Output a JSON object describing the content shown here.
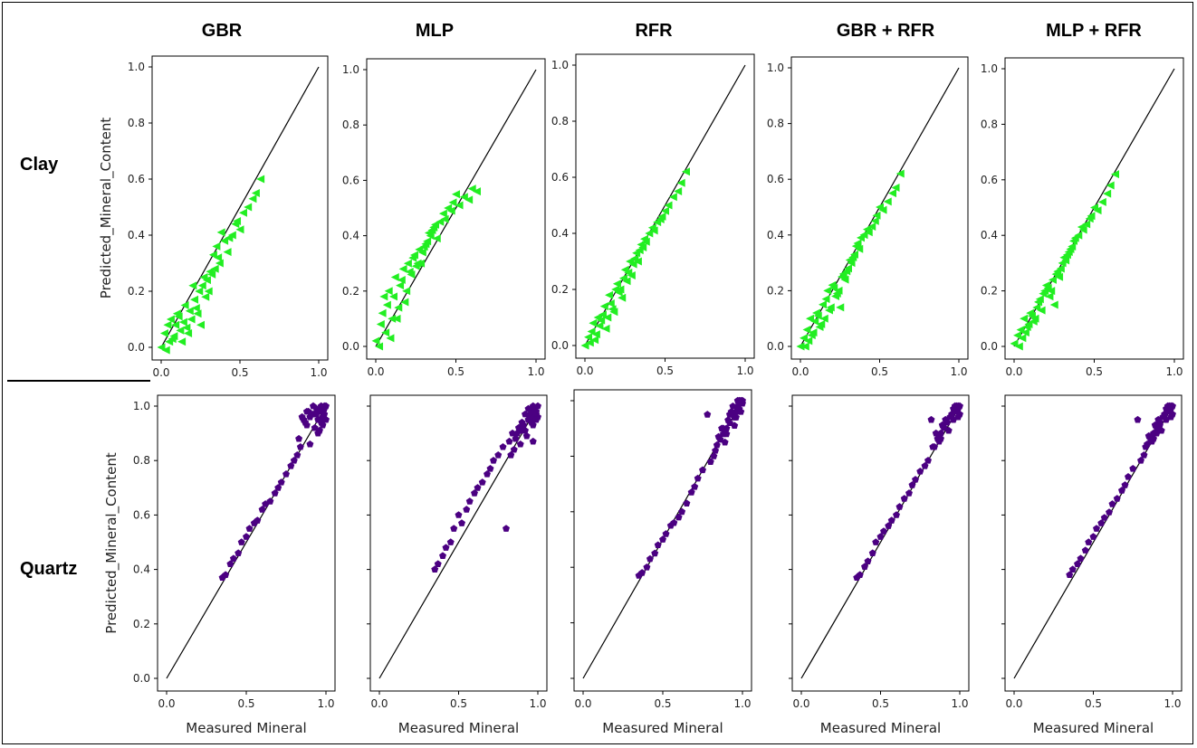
{
  "column_titles": [
    "GBR",
    "MLP",
    "RFR",
    "GBR + RFR",
    "MLP + RFR"
  ],
  "row_titles": [
    "Clay",
    "Quartz"
  ],
  "ylabel": "Predicted_Mineral_Content",
  "xlabel": "Measured Mineral",
  "colors": {
    "clay": "#22ee22",
    "quartz": "#4b0082",
    "line": "#000000"
  },
  "chart_data": [
    {
      "type": "scatter",
      "row": "Clay",
      "model": "GBR",
      "marker": "triangle-left",
      "xlim": [
        0,
        1
      ],
      "ylim": [
        0,
        1
      ],
      "xticks": [
        "0.0",
        "0.5",
        "1.0"
      ],
      "yticks": [
        "0.0",
        "0.2",
        "0.4",
        "0.6",
        "0.8",
        "1.0"
      ],
      "x": [
        0.0,
        0.02,
        0.04,
        0.05,
        0.06,
        0.08,
        0.1,
        0.12,
        0.14,
        0.15,
        0.17,
        0.19,
        0.2,
        0.22,
        0.24,
        0.25,
        0.27,
        0.28,
        0.3,
        0.32,
        0.34,
        0.35,
        0.37,
        0.4,
        0.42,
        0.45,
        0.48,
        0.5,
        0.55,
        0.6,
        0.63,
        0.03,
        0.07,
        0.09,
        0.11,
        0.13,
        0.16,
        0.18,
        0.21,
        0.23,
        0.26,
        0.29,
        0.31,
        0.33,
        0.36,
        0.38,
        0.43,
        0.47,
        0.52,
        0.58
      ],
      "y": [
        0.0,
        0.05,
        0.08,
        0.02,
        0.1,
        0.04,
        0.12,
        0.06,
        0.09,
        0.15,
        0.05,
        0.1,
        0.22,
        0.14,
        0.2,
        0.08,
        0.25,
        0.18,
        0.2,
        0.26,
        0.28,
        0.36,
        0.3,
        0.38,
        0.34,
        0.4,
        0.45,
        0.42,
        0.5,
        0.55,
        0.6,
        -0.01,
        0.03,
        0.08,
        0.11,
        0.02,
        0.07,
        0.13,
        0.17,
        0.12,
        0.22,
        0.24,
        0.27,
        0.33,
        0.32,
        0.41,
        0.39,
        0.44,
        0.48,
        0.53
      ]
    },
    {
      "type": "scatter",
      "row": "Clay",
      "model": "MLP",
      "marker": "triangle-left",
      "xlim": [
        0,
        1
      ],
      "ylim": [
        0,
        1
      ],
      "xticks": [
        "0.0",
        "0.5",
        "1.0"
      ],
      "yticks": [
        "0.0",
        "0.2",
        "0.4",
        "0.6",
        "0.8",
        "1.0"
      ],
      "x": [
        0.0,
        0.02,
        0.04,
        0.05,
        0.06,
        0.08,
        0.1,
        0.12,
        0.14,
        0.15,
        0.17,
        0.19,
        0.2,
        0.22,
        0.24,
        0.25,
        0.27,
        0.28,
        0.3,
        0.32,
        0.34,
        0.35,
        0.37,
        0.4,
        0.42,
        0.45,
        0.48,
        0.5,
        0.55,
        0.6,
        0.63,
        0.03,
        0.07,
        0.09,
        0.11,
        0.13,
        0.16,
        0.18,
        0.21,
        0.23,
        0.26,
        0.29,
        0.31,
        0.33,
        0.36,
        0.38,
        0.43,
        0.47,
        0.52,
        0.58
      ],
      "y": [
        0.02,
        0.0,
        0.12,
        0.18,
        0.05,
        0.2,
        0.1,
        0.25,
        0.14,
        0.22,
        0.28,
        0.2,
        0.3,
        0.26,
        0.33,
        0.29,
        0.35,
        0.3,
        0.36,
        0.38,
        0.4,
        0.42,
        0.44,
        0.45,
        0.48,
        0.5,
        0.52,
        0.55,
        0.54,
        0.57,
        0.56,
        0.08,
        0.15,
        0.03,
        0.18,
        0.1,
        0.24,
        0.16,
        0.27,
        0.32,
        0.3,
        0.34,
        0.37,
        0.41,
        0.43,
        0.39,
        0.46,
        0.49,
        0.51,
        0.53
      ]
    },
    {
      "type": "scatter",
      "row": "Clay",
      "model": "RFR",
      "marker": "triangle-left",
      "xlim": [
        0,
        1
      ],
      "ylim": [
        0,
        1
      ],
      "xticks": [
        "0.0",
        "0.5",
        "1.0"
      ],
      "yticks": [
        "0.0",
        "0.2",
        "0.4",
        "0.6",
        "0.8",
        "1.0"
      ],
      "x": [
        0.0,
        0.02,
        0.04,
        0.05,
        0.06,
        0.08,
        0.1,
        0.12,
        0.14,
        0.15,
        0.17,
        0.19,
        0.2,
        0.22,
        0.24,
        0.25,
        0.27,
        0.28,
        0.3,
        0.32,
        0.34,
        0.35,
        0.37,
        0.4,
        0.42,
        0.45,
        0.48,
        0.5,
        0.55,
        0.6,
        0.63,
        0.03,
        0.07,
        0.09,
        0.11,
        0.13,
        0.16,
        0.18,
        0.21,
        0.23,
        0.26,
        0.29,
        0.31,
        0.33,
        0.36,
        0.38,
        0.43,
        0.47,
        0.52,
        0.58
      ],
      "y": [
        0.0,
        0.03,
        0.05,
        0.08,
        0.02,
        0.1,
        0.09,
        0.14,
        0.1,
        0.18,
        0.13,
        0.2,
        0.22,
        0.2,
        0.24,
        0.27,
        0.26,
        0.3,
        0.29,
        0.33,
        0.34,
        0.36,
        0.38,
        0.4,
        0.42,
        0.44,
        0.46,
        0.48,
        0.53,
        0.58,
        0.62,
        0.01,
        0.04,
        0.07,
        0.11,
        0.06,
        0.15,
        0.12,
        0.19,
        0.17,
        0.23,
        0.25,
        0.31,
        0.3,
        0.35,
        0.37,
        0.41,
        0.45,
        0.5,
        0.55
      ]
    },
    {
      "type": "scatter",
      "row": "Clay",
      "model": "GBR + RFR",
      "marker": "triangle-left",
      "xlim": [
        0,
        1
      ],
      "ylim": [
        0,
        1
      ],
      "xticks": [
        "0.0",
        "0.5",
        "1.0"
      ],
      "yticks": [
        "0.0",
        "0.2",
        "0.4",
        "0.6",
        "0.8",
        "1.0"
      ],
      "x": [
        0.0,
        0.02,
        0.04,
        0.05,
        0.06,
        0.08,
        0.1,
        0.12,
        0.14,
        0.15,
        0.17,
        0.19,
        0.2,
        0.22,
        0.24,
        0.25,
        0.27,
        0.28,
        0.3,
        0.32,
        0.34,
        0.35,
        0.37,
        0.4,
        0.42,
        0.45,
        0.48,
        0.5,
        0.55,
        0.6,
        0.63,
        0.03,
        0.07,
        0.09,
        0.11,
        0.13,
        0.16,
        0.18,
        0.21,
        0.23,
        0.26,
        0.29,
        0.31,
        0.33,
        0.36,
        0.38,
        0.43,
        0.47,
        0.52,
        0.58
      ],
      "y": [
        0.0,
        0.03,
        0.06,
        0.02,
        0.1,
        0.05,
        0.12,
        0.07,
        0.15,
        0.1,
        0.2,
        0.14,
        0.22,
        0.18,
        0.2,
        0.14,
        0.26,
        0.24,
        0.28,
        0.3,
        0.33,
        0.36,
        0.35,
        0.4,
        0.42,
        0.43,
        0.47,
        0.5,
        0.52,
        0.57,
        0.62,
        0.0,
        0.04,
        0.09,
        0.11,
        0.08,
        0.17,
        0.13,
        0.21,
        0.19,
        0.25,
        0.27,
        0.31,
        0.32,
        0.37,
        0.39,
        0.41,
        0.45,
        0.49,
        0.55
      ]
    },
    {
      "type": "scatter",
      "row": "Clay",
      "model": "MLP + RFR",
      "marker": "triangle-left",
      "xlim": [
        0,
        1
      ],
      "ylim": [
        0,
        1
      ],
      "xticks": [
        "0.0",
        "0.5",
        "1.0"
      ],
      "yticks": [
        "0.0",
        "0.2",
        "0.4",
        "0.6",
        "0.8",
        "1.0"
      ],
      "x": [
        0.0,
        0.02,
        0.04,
        0.05,
        0.06,
        0.08,
        0.1,
        0.12,
        0.14,
        0.15,
        0.17,
        0.19,
        0.2,
        0.22,
        0.24,
        0.25,
        0.27,
        0.28,
        0.3,
        0.32,
        0.34,
        0.35,
        0.37,
        0.4,
        0.42,
        0.45,
        0.48,
        0.5,
        0.55,
        0.6,
        0.63,
        0.03,
        0.07,
        0.09,
        0.11,
        0.13,
        0.16,
        0.18,
        0.21,
        0.23,
        0.26,
        0.29,
        0.31,
        0.33,
        0.36,
        0.38,
        0.43,
        0.47,
        0.52,
        0.58
      ],
      "y": [
        0.01,
        0.04,
        0.06,
        0.03,
        0.1,
        0.07,
        0.12,
        0.09,
        0.14,
        0.16,
        0.13,
        0.2,
        0.22,
        0.18,
        0.24,
        0.15,
        0.27,
        0.25,
        0.3,
        0.31,
        0.34,
        0.35,
        0.38,
        0.4,
        0.43,
        0.44,
        0.47,
        0.5,
        0.52,
        0.58,
        0.62,
        0.0,
        0.05,
        0.08,
        0.11,
        0.1,
        0.17,
        0.19,
        0.21,
        0.2,
        0.26,
        0.28,
        0.32,
        0.33,
        0.36,
        0.39,
        0.42,
        0.46,
        0.49,
        0.55
      ]
    },
    {
      "type": "scatter",
      "row": "Quartz",
      "model": "GBR",
      "marker": "pentagon",
      "xlim": [
        0,
        1
      ],
      "ylim": [
        0,
        1
      ],
      "xticks": [
        "0.0",
        "0.5",
        "1.0"
      ],
      "yticks": [
        "0.0",
        "0.2",
        "0.4",
        "0.6",
        "0.8",
        "1.0"
      ],
      "x": [
        0.35,
        0.37,
        0.4,
        0.42,
        0.45,
        0.47,
        0.5,
        0.52,
        0.55,
        0.57,
        0.6,
        0.62,
        0.65,
        0.68,
        0.7,
        0.72,
        0.75,
        0.78,
        0.8,
        0.82,
        0.84,
        0.86,
        0.88,
        0.9,
        0.92,
        0.94,
        0.95,
        0.96,
        0.97,
        0.98,
        0.99,
        1.0,
        0.85,
        0.87,
        0.89,
        0.91,
        0.93,
        0.95,
        0.97,
        0.99,
        0.83,
        0.9,
        0.96,
        0.98,
        1.0,
        0.88,
        0.92,
        0.94,
        0.97,
        0.99
      ],
      "y": [
        0.37,
        0.38,
        0.42,
        0.44,
        0.46,
        0.5,
        0.52,
        0.55,
        0.57,
        0.58,
        0.62,
        0.64,
        0.65,
        0.68,
        0.7,
        0.72,
        0.75,
        0.78,
        0.8,
        0.82,
        0.85,
        0.95,
        0.93,
        0.96,
        0.97,
        0.99,
        0.95,
        0.98,
        1.0,
        0.96,
        0.99,
        1.0,
        0.96,
        0.94,
        0.98,
        0.97,
        0.92,
        0.9,
        0.94,
        0.97,
        0.88,
        0.86,
        0.91,
        0.93,
        0.95,
        0.98,
        1.0,
        0.97,
        0.99,
        1.0
      ]
    },
    {
      "type": "scatter",
      "row": "Quartz",
      "model": "MLP",
      "marker": "pentagon",
      "xlim": [
        0,
        1
      ],
      "ylim": [
        0,
        1
      ],
      "xticks": [
        "0.0",
        "0.5",
        "1.0"
      ],
      "yticks": [],
      "x": [
        0.35,
        0.37,
        0.4,
        0.42,
        0.45,
        0.47,
        0.5,
        0.52,
        0.55,
        0.57,
        0.6,
        0.62,
        0.65,
        0.68,
        0.7,
        0.72,
        0.75,
        0.78,
        0.8,
        0.82,
        0.84,
        0.86,
        0.88,
        0.9,
        0.92,
        0.94,
        0.95,
        0.96,
        0.97,
        0.98,
        0.99,
        1.0,
        0.85,
        0.87,
        0.89,
        0.91,
        0.93,
        0.95,
        0.97,
        0.99,
        0.83,
        0.9,
        0.96,
        0.98,
        1.0,
        0.88,
        0.92,
        0.94,
        0.97,
        0.99
      ],
      "y": [
        0.4,
        0.42,
        0.45,
        0.48,
        0.5,
        0.55,
        0.6,
        0.57,
        0.62,
        0.65,
        0.68,
        0.7,
        0.72,
        0.75,
        0.77,
        0.8,
        0.82,
        0.85,
        0.55,
        0.87,
        0.9,
        0.88,
        0.92,
        0.94,
        0.91,
        0.95,
        0.97,
        0.99,
        0.93,
        0.96,
        0.98,
        1.0,
        0.84,
        0.9,
        0.86,
        0.93,
        0.89,
        0.95,
        0.87,
        0.97,
        0.82,
        0.91,
        0.94,
        0.98,
        0.96,
        0.92,
        0.97,
        0.99,
        1.0,
        0.95
      ]
    },
    {
      "type": "scatter",
      "row": "Quartz",
      "model": "RFR",
      "marker": "pentagon",
      "xlim": [
        0,
        1
      ],
      "ylim": [
        0,
        1
      ],
      "xticks": [
        "0.0",
        "0.5",
        "1.0"
      ],
      "yticks": [],
      "x": [
        0.35,
        0.37,
        0.4,
        0.42,
        0.45,
        0.47,
        0.5,
        0.52,
        0.55,
        0.57,
        0.6,
        0.62,
        0.65,
        0.68,
        0.7,
        0.72,
        0.75,
        0.78,
        0.8,
        0.82,
        0.84,
        0.86,
        0.88,
        0.9,
        0.92,
        0.94,
        0.95,
        0.96,
        0.97,
        0.98,
        0.99,
        1.0,
        0.85,
        0.87,
        0.89,
        0.91,
        0.93,
        0.95,
        0.97,
        0.99,
        0.83,
        0.9,
        0.96,
        0.98,
        1.0,
        0.88,
        0.92,
        0.94,
        0.97,
        0.99
      ],
      "y": [
        0.37,
        0.38,
        0.4,
        0.43,
        0.45,
        0.48,
        0.5,
        0.52,
        0.55,
        0.56,
        0.58,
        0.6,
        0.63,
        0.67,
        0.69,
        0.72,
        0.75,
        0.95,
        0.78,
        0.8,
        0.84,
        0.86,
        0.88,
        0.9,
        0.92,
        0.95,
        0.94,
        0.96,
        0.98,
        1.0,
        0.99,
        1.0,
        0.87,
        0.9,
        0.85,
        0.93,
        0.96,
        0.91,
        0.97,
        1.0,
        0.82,
        0.88,
        0.94,
        0.97,
        0.99,
        0.9,
        0.95,
        0.98,
        1.0,
        0.96
      ]
    },
    {
      "type": "scatter",
      "row": "Quartz",
      "model": "GBR + RFR",
      "marker": "pentagon",
      "xlim": [
        0,
        1
      ],
      "ylim": [
        0,
        1
      ],
      "xticks": [
        "0.0",
        "0.5",
        "1.0"
      ],
      "yticks": [],
      "x": [
        0.35,
        0.37,
        0.4,
        0.42,
        0.45,
        0.47,
        0.5,
        0.52,
        0.55,
        0.57,
        0.6,
        0.62,
        0.65,
        0.68,
        0.7,
        0.72,
        0.75,
        0.78,
        0.8,
        0.82,
        0.84,
        0.86,
        0.88,
        0.9,
        0.92,
        0.94,
        0.95,
        0.96,
        0.97,
        0.98,
        0.99,
        1.0,
        0.85,
        0.87,
        0.89,
        0.91,
        0.93,
        0.95,
        0.97,
        0.99,
        0.83,
        0.9,
        0.96,
        0.98,
        1.0,
        0.88,
        0.92,
        0.94,
        0.97,
        0.99
      ],
      "y": [
        0.37,
        0.38,
        0.41,
        0.43,
        0.46,
        0.5,
        0.52,
        0.54,
        0.56,
        0.58,
        0.6,
        0.63,
        0.66,
        0.68,
        0.71,
        0.73,
        0.76,
        0.78,
        0.8,
        0.95,
        0.85,
        0.88,
        0.9,
        0.92,
        0.94,
        0.96,
        0.97,
        0.99,
        0.98,
        1.0,
        0.96,
        1.0,
        0.9,
        0.87,
        0.93,
        0.95,
        0.91,
        0.97,
        0.99,
        1.0,
        0.85,
        0.92,
        0.95,
        0.98,
        0.97,
        0.88,
        0.94,
        0.96,
        1.0,
        0.99
      ]
    },
    {
      "type": "scatter",
      "row": "Quartz",
      "model": "MLP + RFR",
      "marker": "pentagon",
      "xlim": [
        0,
        1
      ],
      "ylim": [
        0,
        1
      ],
      "xticks": [
        "0.0",
        "0.5",
        "1.0"
      ],
      "yticks": [],
      "x": [
        0.35,
        0.37,
        0.4,
        0.42,
        0.45,
        0.47,
        0.5,
        0.52,
        0.55,
        0.57,
        0.6,
        0.62,
        0.65,
        0.68,
        0.7,
        0.72,
        0.75,
        0.78,
        0.8,
        0.82,
        0.84,
        0.86,
        0.88,
        0.9,
        0.92,
        0.94,
        0.95,
        0.96,
        0.97,
        0.98,
        0.99,
        1.0,
        0.85,
        0.87,
        0.89,
        0.91,
        0.93,
        0.95,
        0.97,
        0.99,
        0.83,
        0.9,
        0.96,
        0.98,
        1.0,
        0.88,
        0.92,
        0.94,
        0.97,
        0.99
      ],
      "y": [
        0.38,
        0.4,
        0.42,
        0.44,
        0.47,
        0.5,
        0.52,
        0.55,
        0.57,
        0.59,
        0.61,
        0.64,
        0.66,
        0.69,
        0.71,
        0.74,
        0.77,
        0.95,
        0.8,
        0.82,
        0.86,
        0.88,
        0.9,
        0.92,
        0.94,
        0.96,
        0.97,
        0.99,
        0.98,
        1.0,
        0.96,
        1.0,
        0.89,
        0.87,
        0.93,
        0.95,
        0.91,
        0.97,
        0.99,
        1.0,
        0.85,
        0.9,
        0.95,
        0.98,
        0.97,
        0.88,
        0.93,
        0.96,
        1.0,
        0.99
      ]
    }
  ]
}
